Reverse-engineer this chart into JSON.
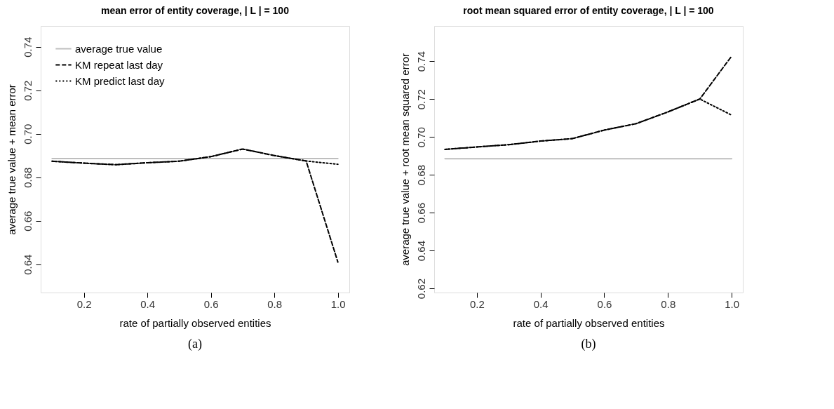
{
  "chart_data": [
    {
      "type": "line",
      "title": "mean error of entity coverage, | L | = 100",
      "xlabel": "rate of partially observed entities",
      "ylabel": "average true value + mean error",
      "x": [
        0.1,
        0.2,
        0.3,
        0.4,
        0.5,
        0.6,
        0.7,
        0.8,
        0.9,
        1.0
      ],
      "series": [
        {
          "name": "average true value",
          "color": "#bebebe",
          "line_style": "solid",
          "values": [
            0.6886,
            0.6886,
            0.6886,
            0.6886,
            0.6886,
            0.6886,
            0.6886,
            0.6886,
            0.6886,
            0.6886
          ]
        },
        {
          "name": "KM repeat last day",
          "color": "#000000",
          "line_style": "dashed",
          "values": [
            0.6874,
            0.6865,
            0.6858,
            0.6867,
            0.6874,
            0.6895,
            0.693,
            0.69,
            0.6875,
            0.641
          ]
        },
        {
          "name": "KM predict last day",
          "color": "#000000",
          "line_style": "dotted",
          "values": [
            0.6874,
            0.6865,
            0.6858,
            0.6867,
            0.6874,
            0.6895,
            0.693,
            0.69,
            0.6875,
            0.686
          ]
        }
      ],
      "xlim": [
        0.064,
        1.036
      ],
      "ylim": [
        0.627,
        0.7496
      ],
      "xticks": [
        0.2,
        0.4,
        0.6,
        0.8,
        {
          "value": 1.0,
          "label": "1.0"
        }
      ],
      "yticks": [
        0.64,
        0.66,
        0.68,
        {
          "value": 0.7,
          "label": "0.70"
        },
        0.72,
        0.74
      ],
      "grid": false,
      "legend": "top left",
      "marker": "none",
      "annotations": [
        "(a)"
      ]
    },
    {
      "type": "line",
      "title": "root mean squared error of entity coverage, | L | = 100",
      "xlabel": "rate of partially observed entities",
      "ylabel": "average true value + root mean squared error",
      "x": [
        0.1,
        0.2,
        0.3,
        0.4,
        0.5,
        0.6,
        0.7,
        0.8,
        0.9,
        1.0
      ],
      "series": [
        {
          "name": "average true value",
          "color": "#bebebe",
          "line_style": "solid",
          "values": [
            0.6885,
            0.6885,
            0.6885,
            0.6885,
            0.6885,
            0.6885,
            0.6885,
            0.6885,
            0.6885,
            0.6885
          ]
        },
        {
          "name": "KM repeat last day",
          "color": "#000000",
          "line_style": "dashed",
          "values": [
            0.6934,
            0.6947,
            0.6959,
            0.6978,
            0.6991,
            0.7036,
            0.707,
            0.7132,
            0.72,
            0.7427
          ]
        },
        {
          "name": "KM predict last day",
          "color": "#000000",
          "line_style": "dotted",
          "values": [
            0.6934,
            0.6947,
            0.6959,
            0.6978,
            0.6991,
            0.7036,
            0.707,
            0.7132,
            0.72,
            0.7115
          ]
        }
      ],
      "xlim": [
        0.066,
        1.035
      ],
      "ylim": [
        0.6178,
        0.7586
      ],
      "xticks": [
        0.2,
        0.4,
        0.6,
        0.8,
        {
          "value": 1.0,
          "label": "1.0"
        }
      ],
      "yticks": [
        0.62,
        0.64,
        0.66,
        0.68,
        {
          "value": 0.7,
          "label": "0.70"
        },
        0.72,
        0.74
      ],
      "grid": false,
      "legend": "top left",
      "marker": "none",
      "annotations": [
        "(b)"
      ]
    }
  ]
}
